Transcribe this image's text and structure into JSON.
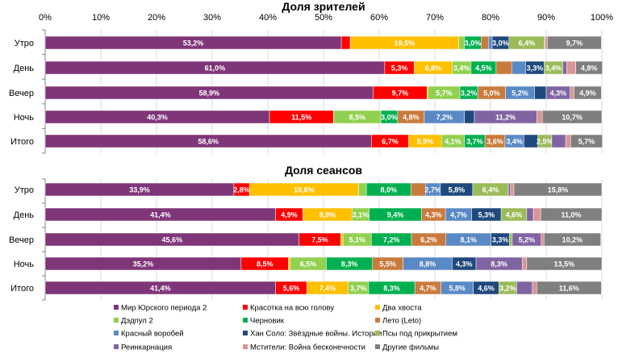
{
  "chart_data": [
    {
      "type": "bar",
      "orientation": "horizontal",
      "stacked": "100%",
      "title": "Доля зрителей",
      "categories": [
        "Утро",
        "День",
        "Вечер",
        "Ночь",
        "Итого"
      ],
      "xlim": [
        0,
        100
      ],
      "xticks": [
        "0%",
        "10%",
        "20%",
        "30%",
        "40%",
        "50%",
        "60%",
        "70%",
        "80%",
        "90%",
        "100%"
      ],
      "grid": true,
      "series": [
        {
          "name": "Мир Юрского периода 2",
          "values": [
            53.2,
            61.0,
            58.9,
            40.3,
            58.6
          ],
          "labels": [
            "53,2%",
            "61,0%",
            "58,9%",
            "40,3%",
            "58,6%"
          ]
        },
        {
          "name": "Красотка на всю голову",
          "values": [
            1.6,
            5.3,
            9.7,
            11.5,
            6.7
          ],
          "labels": [
            "",
            "5,3%",
            "9,7%",
            "11,5%",
            "6,7%"
          ]
        },
        {
          "name": "Два хвоста",
          "values": [
            19.5,
            6.8,
            0.2,
            0,
            5.9
          ],
          "labels": [
            "19,5%",
            "6,8%",
            "",
            "",
            "5,9%"
          ]
        },
        {
          "name": "Дэдпул 2",
          "values": [
            1.0,
            3.4,
            5.7,
            8.5,
            4.1
          ],
          "labels": [
            "",
            "3,4%",
            "5,7%",
            "8,5%",
            "4,1%"
          ]
        },
        {
          "name": "Черновик",
          "values": [
            3.0,
            4.5,
            3.2,
            3.0,
            3.7
          ],
          "labels": [
            "3,0%",
            "4,5%",
            "3,2%",
            "3,0%",
            "3,7%"
          ]
        },
        {
          "name": "Лето (Leto)",
          "values": [
            1.3,
            2.8,
            5.0,
            4.8,
            3.6
          ],
          "labels": [
            "",
            "",
            "5,0%",
            "4,8%",
            "3,6%"
          ]
        },
        {
          "name": "Красный воробей",
          "values": [
            0.7,
            2.5,
            5.2,
            7.2,
            3.4
          ],
          "labels": [
            "",
            "",
            "5,2%",
            "7,2%",
            "3,4%"
          ]
        },
        {
          "name": "Хан Соло: Звёздные войны. Истории",
          "values": [
            3.0,
            3.3,
            2.1,
            1.8,
            2.5
          ],
          "labels": [
            "3,0%",
            "3,3%",
            "",
            "",
            ""
          ]
        },
        {
          "name": "Псы под прикрытием",
          "values": [
            6.4,
            3.4,
            0,
            0,
            2.5
          ],
          "labels": [
            "6,4%",
            "3,4%",
            "",
            "",
            "2,5%"
          ]
        },
        {
          "name": "Реинкарнация",
          "values": [
            0.1,
            0.7,
            4.3,
            11.2,
            2.5
          ],
          "labels": [
            "",
            "",
            "4,3%",
            "11,2%",
            ""
          ]
        },
        {
          "name": "Мстители: Война бесконечности",
          "values": [
            0.4,
            1.6,
            0.7,
            1.0,
            0.9
          ],
          "labels": [
            "",
            "",
            "",
            "",
            ""
          ]
        },
        {
          "name": "Другие фильмы",
          "values": [
            9.7,
            4.8,
            4.9,
            10.7,
            5.7
          ],
          "labels": [
            "9,7%",
            "4,8%",
            "4,9%",
            "10,7%",
            "5,7%"
          ]
        }
      ]
    },
    {
      "type": "bar",
      "orientation": "horizontal",
      "stacked": "100%",
      "title": "Доля сеансов",
      "categories": [
        "Утро",
        "День",
        "Вечер",
        "Ночь",
        "Итого"
      ],
      "xlim": [
        0,
        100
      ],
      "grid": true,
      "series": [
        {
          "name": "Мир Юрского периода 2",
          "values": [
            33.9,
            41.4,
            45.6,
            35.2,
            41.4
          ],
          "labels": [
            "33,9%",
            "41,4%",
            "45,6%",
            "35,2%",
            "41,4%"
          ]
        },
        {
          "name": "Красотка на всю голову",
          "values": [
            2.8,
            4.9,
            7.5,
            8.5,
            5.6
          ],
          "labels": [
            "2,8%",
            "4,9%",
            "7,5%",
            "8,5%",
            "5,6%"
          ]
        },
        {
          "name": "Два хвоста",
          "values": [
            19.6,
            8.8,
            0.4,
            0.3,
            7.4
          ],
          "labels": [
            "19,6%",
            "8,8%",
            "",
            "",
            "7,4%"
          ]
        },
        {
          "name": "Дэдпул 2",
          "values": [
            1.4,
            3.1,
            5.1,
            6.5,
            3.7
          ],
          "labels": [
            "",
            "3,1%",
            "5,1%",
            "6,5%",
            "3,7%"
          ]
        },
        {
          "name": "Черновик",
          "values": [
            8.0,
            9.4,
            7.2,
            8.3,
            8.3
          ],
          "labels": [
            "8,0%",
            "9,4%",
            "7,2%",
            "8,3%",
            "8,3%"
          ]
        },
        {
          "name": "Лето (Leto)",
          "values": [
            2.6,
            4.3,
            6.2,
            5.5,
            4.7
          ],
          "labels": [
            "",
            "4,3%",
            "6,2%",
            "5,5%",
            "4,7%"
          ]
        },
        {
          "name": "Красный воробей",
          "values": [
            2.7,
            4.7,
            8.1,
            8.8,
            5.8
          ],
          "labels": [
            "2,7%",
            "4,7%",
            "8,1%",
            "8,8%",
            "5,8%"
          ]
        },
        {
          "name": "Хан Соло: Звёздные войны. Истории",
          "values": [
            5.8,
            5.3,
            3.3,
            4.3,
            4.6
          ],
          "labels": [
            "5,8%",
            "5,3%",
            "3,3%",
            "4,3%",
            "4,6%"
          ]
        },
        {
          "name": "Псы под прикрытием",
          "values": [
            6.4,
            4.6,
            0.5,
            0,
            3.2
          ],
          "labels": [
            "6,4%",
            "4,6%",
            "",
            "",
            "3,2%"
          ]
        },
        {
          "name": "Реинкарнация",
          "values": [
            0.4,
            1.2,
            5.2,
            8.3,
            2.8
          ],
          "labels": [
            "",
            "",
            "5,2%",
            "8,3%",
            ""
          ]
        },
        {
          "name": "Мстители: Война бесконечности",
          "values": [
            0.6,
            1.3,
            0.5,
            0.8,
            0.8
          ],
          "labels": [
            "",
            "",
            "",
            "",
            ""
          ]
        },
        {
          "name": "Другие фильмы",
          "values": [
            15.8,
            11.0,
            10.2,
            13.5,
            11.6
          ],
          "labels": [
            "15,8%",
            "11,0%",
            "10,2%",
            "13,5%",
            "11,6%"
          ]
        }
      ]
    }
  ],
  "legend": {
    "placement": "bottom",
    "items": [
      "Мир Юрского периода 2",
      "Красотка на всю голову",
      "Два хвоста",
      "Дэдпул 2",
      "Черновик",
      "Лето (Leto)",
      "Красный воробей",
      "Хан Соло: Звёздные войны. Истории",
      "Псы под прикрытием",
      "Реинкарнация",
      "Мстители: Война бесконечности",
      "Другие фильмы"
    ]
  },
  "colors": [
    "#7f3679",
    "#ff0000",
    "#ffc000",
    "#92d050",
    "#00b050",
    "#c97b3d",
    "#5a8ac6",
    "#1f497d",
    "#9bbb59",
    "#8064a2",
    "#d99694",
    "#7f7f7f"
  ]
}
